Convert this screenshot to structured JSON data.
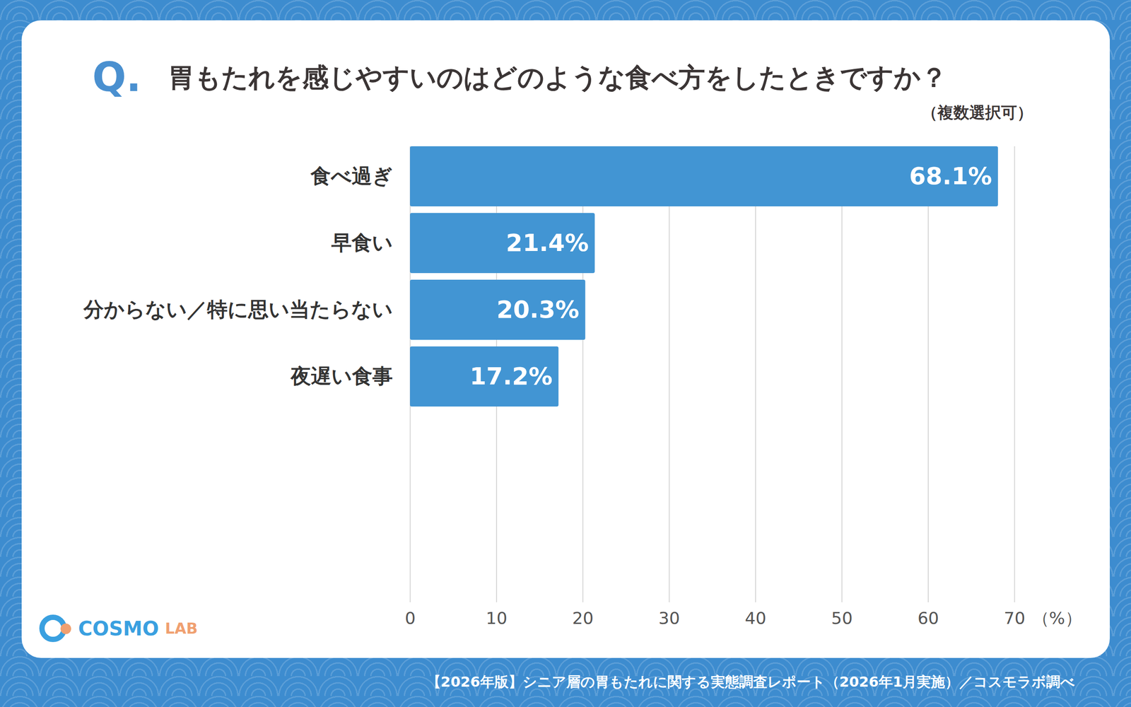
{
  "chart_data": {
    "type": "bar",
    "orientation": "horizontal",
    "title_prefix": "Q.",
    "title": "胃もたれを感じやすいのはどのような食べ方をしたときですか？",
    "subtitle": "（複数選択可）",
    "categories": [
      "食べ過ぎ",
      "早食い",
      "分からない／特に思い当たらない",
      "夜遅い食事"
    ],
    "values": [
      68.1,
      21.4,
      20.3,
      17.2
    ],
    "value_labels": [
      "68.1%",
      "21.4%",
      "20.3%",
      "17.2%"
    ],
    "data_labels": true,
    "color": "#4295d3",
    "xlim": [
      0,
      70
    ],
    "xticks": [
      0,
      10,
      20,
      30,
      40,
      50,
      60,
      70
    ],
    "xlabel": "（%）",
    "grid": true,
    "caption": "【2026年版】シニア層の胃もたれに関する実態調査レポート（2026年1月実施）／コスモラボ調べ",
    "logo": [
      "COSMO",
      "LAB"
    ]
  }
}
